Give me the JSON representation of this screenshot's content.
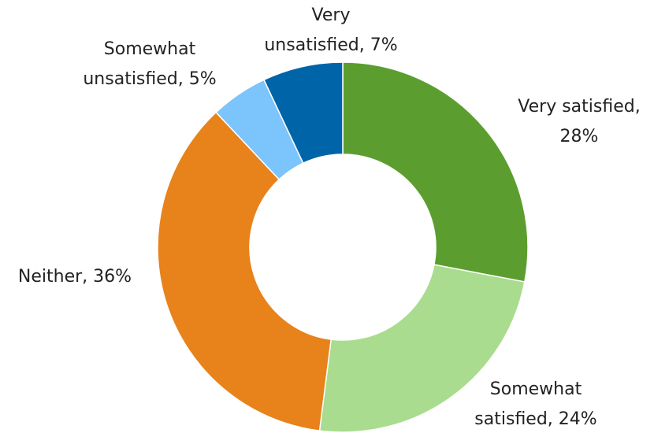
{
  "chart_data": {
    "type": "donut",
    "values": [
      28,
      24,
      36,
      5,
      7
    ],
    "data_labels": [
      [
        "Very satisfied,",
        "28%"
      ],
      [
        "Somewhat",
        "satisfied, 24%"
      ],
      [
        "Neither, 36%"
      ],
      [
        "Somewhat",
        "unsatisfied, 5%"
      ],
      [
        "Very",
        "unsatisfied, 7%"
      ]
    ],
    "colors": [
      "#5b9e2f",
      "#a9dc8e",
      "#e8821a",
      "#7cc4fc",
      "#0064a8"
    ]
  }
}
